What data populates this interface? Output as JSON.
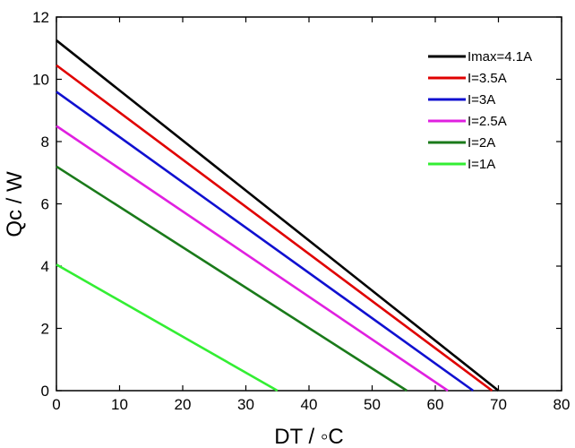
{
  "chart_data": {
    "type": "line",
    "title": "",
    "xlabel": "DT / ◦C",
    "ylabel": "Qc / W",
    "xlim": [
      0,
      80
    ],
    "ylim": [
      0,
      12
    ],
    "xticks": [
      0,
      10,
      20,
      30,
      40,
      50,
      60,
      70,
      80
    ],
    "yticks": [
      0,
      2,
      4,
      6,
      8,
      10,
      12
    ],
    "grid": false,
    "legend_position": "top-right",
    "series": [
      {
        "name": "Imax=4.1A",
        "color": "#000000",
        "x": [
          0,
          70
        ],
        "y": [
          11.25,
          0
        ]
      },
      {
        "name": "I=3.5A",
        "color": "#e00000",
        "x": [
          0,
          69
        ],
        "y": [
          10.45,
          0
        ]
      },
      {
        "name": "I=3A",
        "color": "#1010d0",
        "x": [
          0,
          66
        ],
        "y": [
          9.6,
          0
        ]
      },
      {
        "name": "I=2.5A",
        "color": "#e020e0",
        "x": [
          0,
          62
        ],
        "y": [
          8.5,
          0
        ]
      },
      {
        "name": "I=2A",
        "color": "#1a7a1a",
        "x": [
          0,
          55.5
        ],
        "y": [
          7.2,
          0
        ]
      },
      {
        "name": "I=1A",
        "color": "#33ee33",
        "x": [
          0,
          35
        ],
        "y": [
          4.05,
          0
        ]
      }
    ]
  }
}
